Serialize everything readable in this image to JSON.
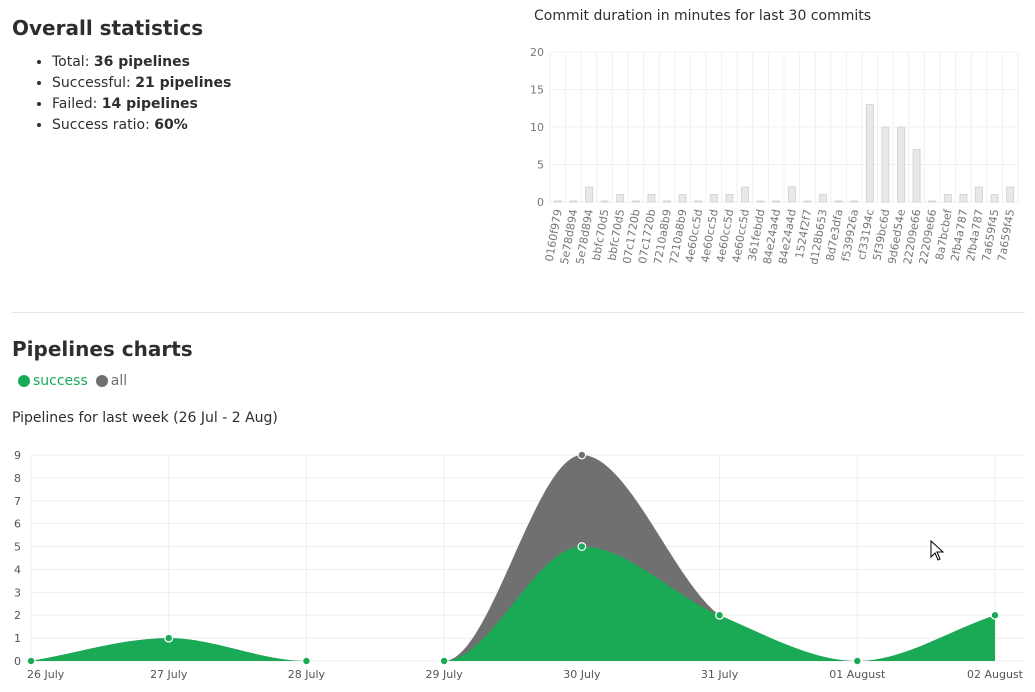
{
  "overall": {
    "title": "Overall statistics",
    "stats": [
      {
        "label": "Total:",
        "value": "36 pipelines"
      },
      {
        "label": "Successful:",
        "value": "21 pipelines"
      },
      {
        "label": "Failed:",
        "value": "14 pipelines"
      },
      {
        "label": "Success ratio:",
        "value": "60%"
      }
    ]
  },
  "pipelines": {
    "title": "Pipelines charts",
    "legend": [
      {
        "label": "success",
        "color": "#1aaa55"
      },
      {
        "label": "all",
        "color": "#707070"
      }
    ]
  },
  "chart_data": [
    {
      "type": "bar",
      "title": "Commit duration in minutes for last 30 commits",
      "xlabel": "",
      "ylabel": "",
      "ylim": [
        0,
        20
      ],
      "yticks": [
        0,
        5,
        10,
        15,
        20
      ],
      "grid": true,
      "categories": [
        "0160f979",
        "5e78d894",
        "5e78d894",
        "bbfc70d5",
        "bbfc70d5",
        "07c1720b",
        "07c1720b",
        "7210a8b9",
        "7210a8b9",
        "4e60cc5d",
        "4e60cc5d",
        "4e60cc5d",
        "4e60cc5d",
        "361febdd",
        "84e24a4d",
        "84e24a4d",
        "1524f2f7",
        "d128b653",
        "8d7e3dfa",
        "f539926a",
        "cf33194c",
        "5f39bc6d",
        "9d6ed54e",
        "22209e66",
        "22209e66",
        "8a7bcbef",
        "2fb4a787",
        "2fb4a787",
        "7a659f45",
        "7a659f45"
      ],
      "values": [
        0,
        0,
        2,
        0,
        1,
        0,
        1,
        0,
        1,
        0,
        1,
        1,
        2,
        0,
        0,
        2,
        0,
        1,
        0,
        0,
        13,
        10,
        10,
        7,
        0,
        1,
        1,
        2,
        1,
        2
      ],
      "color": "#e8e8e8"
    },
    {
      "type": "area",
      "title": "Pipelines for last week (26 Jul - 2 Aug)",
      "xlabel": "",
      "ylabel": "",
      "ylim": [
        0,
        9
      ],
      "yticks": [
        0,
        1,
        2,
        3,
        4,
        5,
        6,
        7,
        8,
        9
      ],
      "grid": true,
      "x": [
        "26 July",
        "27 July",
        "28 July",
        "29 July",
        "30 July",
        "31 July",
        "01 August",
        "02 August"
      ],
      "series": [
        {
          "name": "all",
          "values": [
            0,
            1,
            0,
            0,
            9,
            2,
            0,
            2
          ],
          "color": "#707070"
        },
        {
          "name": "success",
          "values": [
            0,
            1,
            0,
            0,
            5,
            2,
            0,
            2
          ],
          "color": "#1aaa55"
        }
      ]
    }
  ]
}
